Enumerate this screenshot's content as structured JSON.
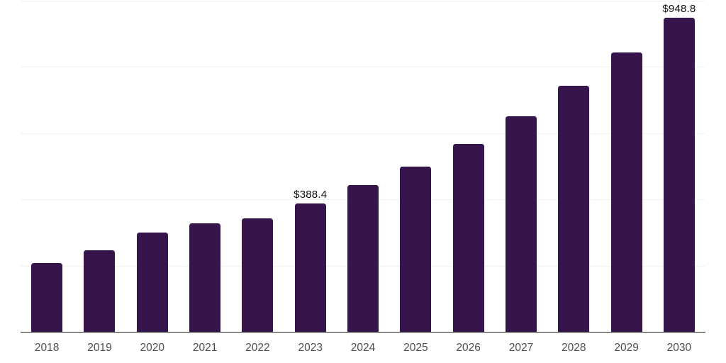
{
  "chart_data": {
    "type": "bar",
    "title": "",
    "xlabel": "",
    "ylabel": "",
    "categories": [
      "2018",
      "2019",
      "2020",
      "2021",
      "2022",
      "2023",
      "2024",
      "2025",
      "2026",
      "2027",
      "2028",
      "2029",
      "2030"
    ],
    "values": [
      207,
      246,
      300,
      328,
      343,
      388.4,
      443,
      500,
      568,
      650,
      743,
      843,
      948.8
    ],
    "value_labels": [
      "",
      "",
      "",
      "",
      "",
      "$388.4",
      "",
      "",
      "",
      "",
      "",
      "",
      "$948.8"
    ],
    "ylim": [
      0,
      1000
    ],
    "gridline_values": [
      200,
      400,
      600,
      800,
      1000
    ],
    "grid": "horizontal",
    "legend": "none",
    "colors": {
      "bar": "#35154B",
      "gridline": "#f2f2f2",
      "axis_line": "#1f1f1f",
      "tick_label": "#4d4d4d",
      "value_label": "#0d0d0d",
      "background": "#ffffff"
    }
  }
}
